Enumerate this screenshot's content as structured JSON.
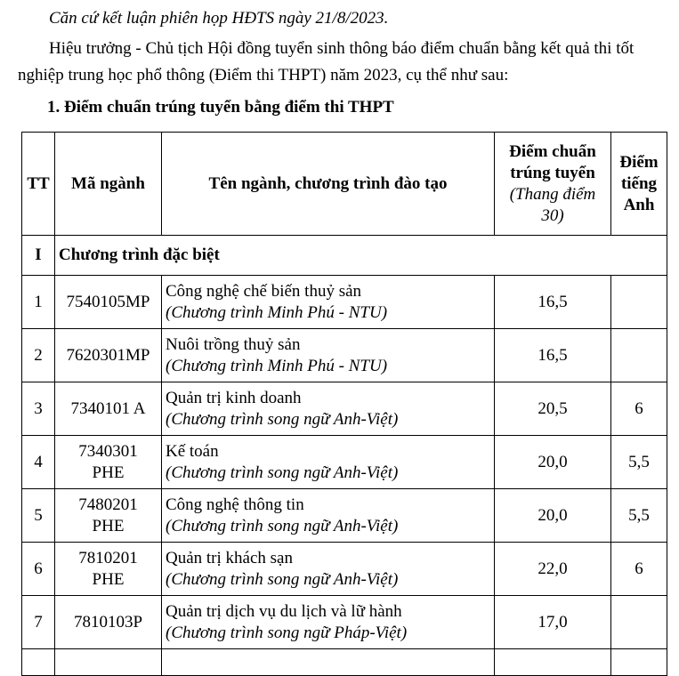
{
  "intro": {
    "line1": "Căn cứ kết luận phiên họp HĐTS ngày 21/8/2023.",
    "line2a": "Hiệu trưởng - Chủ tịch Hội đồng tuyển sinh thông báo điểm chuẩn bằng kết quả thi tốt",
    "line2b": "nghiệp trung học phổ thông (Điểm thi THPT) năm 2023, cụ thể như sau:",
    "heading": "1. Điểm chuẩn trúng tuyển bằng điểm thi THPT"
  },
  "table": {
    "headers": {
      "tt": "TT",
      "code": "Mã ngành",
      "name": "Tên ngành, chương trình đào tạo",
      "score_a": "Điểm chuẩn",
      "score_b": "trúng tuyển",
      "score_c": "(Thang điểm 30)",
      "eng_a": "Điểm",
      "eng_b": "tiếng",
      "eng_c": "Anh"
    },
    "section": {
      "tt": "I",
      "label": "Chương trình đặc biệt"
    },
    "rows": [
      {
        "tt": "1",
        "code_a": "7540105MP",
        "code_b": "",
        "name": "Công nghệ chế biến thuỷ sản",
        "program": "(Chương trình Minh Phú - NTU)",
        "score": "16,5",
        "eng": ""
      },
      {
        "tt": "2",
        "code_a": "7620301MP",
        "code_b": "",
        "name": "Nuôi trồng thuỷ sản",
        "program": "(Chương trình Minh Phú - NTU)",
        "score": "16,5",
        "eng": ""
      },
      {
        "tt": "3",
        "code_a": "7340101 A",
        "code_b": "",
        "name": "Quản trị kinh doanh",
        "program": "(Chương trình song ngữ Anh-Việt)",
        "score": "20,5",
        "eng": "6"
      },
      {
        "tt": "4",
        "code_a": "7340301",
        "code_b": "PHE",
        "name": "Kế toán",
        "program": "(Chương trình song ngữ Anh-Việt)",
        "score": "20,0",
        "eng": "5,5"
      },
      {
        "tt": "5",
        "code_a": "7480201",
        "code_b": "PHE",
        "name": "Công nghệ thông tin",
        "program": "(Chương trình song ngữ Anh-Việt)",
        "score": "20,0",
        "eng": "5,5"
      },
      {
        "tt": "6",
        "code_a": "7810201",
        "code_b": "PHE",
        "name": "Quản trị khách sạn",
        "program": "(Chương trình song ngữ Anh-Việt)",
        "score": "22,0",
        "eng": "6"
      },
      {
        "tt": "7",
        "code_a": "7810103P",
        "code_b": "",
        "name": "Quản trị dịch vụ du lịch và lữ hành",
        "program": "(Chương trình song ngữ Pháp-Việt)",
        "score": "17,0",
        "eng": ""
      }
    ]
  }
}
